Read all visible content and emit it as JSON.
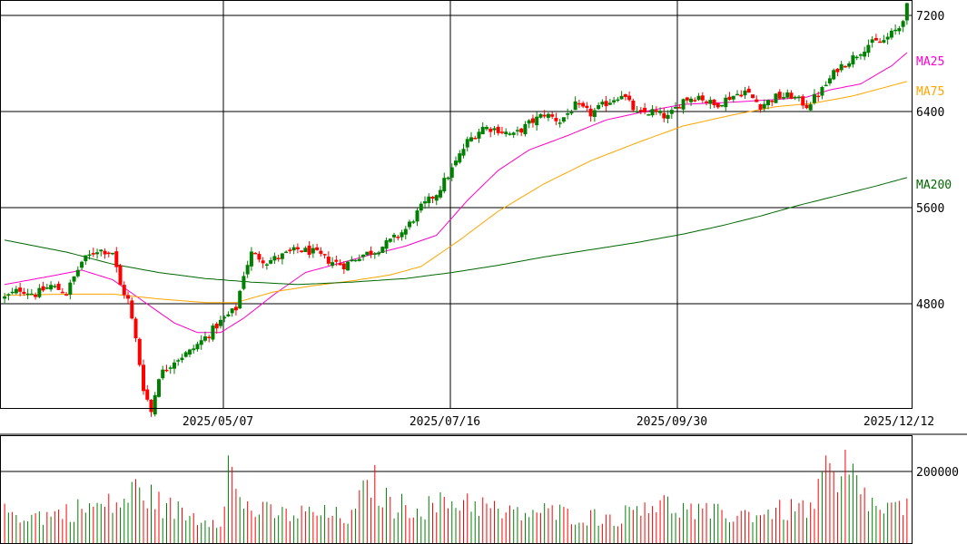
{
  "chart_data": [
    {
      "type": "candlestick",
      "title": "",
      "xlabel": "",
      "ylabel": "",
      "ylim": [
        4000,
        7400
      ],
      "y_ticks": [
        "7200",
        "6400",
        "5600",
        "4800"
      ],
      "x_tick_labels": [
        "2025/05/07",
        "2025/07/16",
        "2025/09/30",
        "2025/12/12"
      ],
      "grid": true,
      "up_color": "#008000",
      "down_color": "#ff0000",
      "ohlc_keyframes": [
        [
          0,
          4850
        ],
        [
          4,
          4920
        ],
        [
          8,
          4880
        ],
        [
          12,
          4950
        ],
        [
          16,
          4890
        ],
        [
          20,
          5150
        ],
        [
          24,
          5250
        ],
        [
          28,
          5230
        ],
        [
          30,
          4950
        ],
        [
          32,
          4830
        ],
        [
          34,
          4500
        ],
        [
          36,
          4100
        ],
        [
          38,
          3900
        ],
        [
          40,
          4200
        ],
        [
          44,
          4330
        ],
        [
          48,
          4400
        ],
        [
          52,
          4520
        ],
        [
          56,
          4650
        ],
        [
          60,
          4760
        ],
        [
          62,
          5050
        ],
        [
          64,
          5220
        ],
        [
          68,
          5150
        ],
        [
          72,
          5200
        ],
        [
          76,
          5250
        ],
        [
          80,
          5230
        ],
        [
          84,
          5160
        ],
        [
          88,
          5120
        ],
        [
          92,
          5200
        ],
        [
          96,
          5240
        ],
        [
          100,
          5320
        ],
        [
          104,
          5420
        ],
        [
          108,
          5600
        ],
        [
          112,
          5720
        ],
        [
          116,
          5920
        ],
        [
          120,
          6150
        ],
        [
          124,
          6270
        ],
        [
          128,
          6250
        ],
        [
          132,
          6200
        ],
        [
          136,
          6300
        ],
        [
          140,
          6380
        ],
        [
          144,
          6320
        ],
        [
          148,
          6450
        ],
        [
          152,
          6380
        ],
        [
          156,
          6470
        ],
        [
          160,
          6550
        ],
        [
          164,
          6380
        ],
        [
          168,
          6400
        ],
        [
          172,
          6350
        ],
        [
          176,
          6500
        ],
        [
          180,
          6530
        ],
        [
          184,
          6450
        ],
        [
          188,
          6520
        ],
        [
          192,
          6570
        ],
        [
          196,
          6450
        ],
        [
          200,
          6520
        ],
        [
          204,
          6530
        ],
        [
          208,
          6450
        ],
        [
          212,
          6580
        ],
        [
          216,
          6760
        ],
        [
          220,
          6850
        ],
        [
          224,
          6960
        ],
        [
          228,
          6990
        ],
        [
          232,
          7100
        ],
        [
          234,
          7270
        ]
      ],
      "moving_averages": [
        {
          "name": "MA25",
          "color": "#ff00cc",
          "points": [
            [
              0,
              4960
            ],
            [
              12,
              5030
            ],
            [
              20,
              5080
            ],
            [
              28,
              5000
            ],
            [
              36,
              4820
            ],
            [
              44,
              4640
            ],
            [
              50,
              4560
            ],
            [
              56,
              4560
            ],
            [
              62,
              4680
            ],
            [
              70,
              4880
            ],
            [
              78,
              5060
            ],
            [
              86,
              5130
            ],
            [
              94,
              5200
            ],
            [
              104,
              5280
            ],
            [
              112,
              5370
            ],
            [
              120,
              5660
            ],
            [
              128,
              5910
            ],
            [
              136,
              6080
            ],
            [
              146,
              6200
            ],
            [
              156,
              6330
            ],
            [
              166,
              6400
            ],
            [
              176,
              6460
            ],
            [
              190,
              6480
            ],
            [
              200,
              6500
            ],
            [
              208,
              6520
            ],
            [
              214,
              6580
            ],
            [
              222,
              6630
            ],
            [
              230,
              6780
            ],
            [
              234,
              6890
            ]
          ]
        },
        {
          "name": "MA75",
          "color": "#ffa500",
          "points": [
            [
              0,
              4870
            ],
            [
              16,
              4880
            ],
            [
              28,
              4880
            ],
            [
              40,
              4840
            ],
            [
              52,
              4810
            ],
            [
              60,
              4810
            ],
            [
              70,
              4900
            ],
            [
              80,
              4950
            ],
            [
              90,
              4990
            ],
            [
              100,
              5040
            ],
            [
              108,
              5110
            ],
            [
              118,
              5330
            ],
            [
              128,
              5570
            ],
            [
              140,
              5800
            ],
            [
              152,
              5990
            ],
            [
              164,
              6140
            ],
            [
              176,
              6280
            ],
            [
              190,
              6380
            ],
            [
              200,
              6440
            ],
            [
              210,
              6470
            ],
            [
              220,
              6530
            ],
            [
              234,
              6650
            ]
          ]
        },
        {
          "name": "MA200",
          "color": "#006600",
          "points": [
            [
              0,
              5330
            ],
            [
              16,
              5230
            ],
            [
              28,
              5130
            ],
            [
              40,
              5060
            ],
            [
              52,
              5010
            ],
            [
              64,
              4980
            ],
            [
              76,
              4960
            ],
            [
              90,
              4980
            ],
            [
              104,
              5010
            ],
            [
              116,
              5060
            ],
            [
              128,
              5120
            ],
            [
              140,
              5190
            ],
            [
              152,
              5250
            ],
            [
              164,
              5310
            ],
            [
              176,
              5380
            ],
            [
              186,
              5450
            ],
            [
              196,
              5530
            ],
            [
              206,
              5620
            ],
            [
              216,
              5700
            ],
            [
              226,
              5780
            ],
            [
              234,
              5850
            ]
          ]
        }
      ],
      "ma_legend": [
        "MA25",
        "MA75",
        "MA200"
      ]
    },
    {
      "type": "bar",
      "title": "",
      "xlabel": "",
      "ylabel": "",
      "ylim": [
        0,
        260000
      ],
      "y_ticks": [
        "200000"
      ],
      "volume_keyframes": [
        [
          0,
          100000
        ],
        [
          10,
          90000
        ],
        [
          20,
          115000
        ],
        [
          30,
          130000
        ],
        [
          34,
          175000
        ],
        [
          36,
          170000
        ],
        [
          40,
          130000
        ],
        [
          50,
          85000
        ],
        [
          56,
          80000
        ],
        [
          58,
          270000
        ],
        [
          60,
          160000
        ],
        [
          64,
          110000
        ],
        [
          72,
          95000
        ],
        [
          80,
          100000
        ],
        [
          90,
          85000
        ],
        [
          95,
          210000
        ],
        [
          100,
          125000
        ],
        [
          110,
          120000
        ],
        [
          120,
          145000
        ],
        [
          130,
          95000
        ],
        [
          140,
          105000
        ],
        [
          150,
          90000
        ],
        [
          160,
          85000
        ],
        [
          165,
          140000
        ],
        [
          170,
          130000
        ],
        [
          180,
          100000
        ],
        [
          190,
          95000
        ],
        [
          200,
          105000
        ],
        [
          210,
          120000
        ],
        [
          214,
          265000
        ],
        [
          216,
          140000
        ],
        [
          218,
          245000
        ],
        [
          226,
          110000
        ],
        [
          234,
          115000
        ]
      ]
    }
  ]
}
